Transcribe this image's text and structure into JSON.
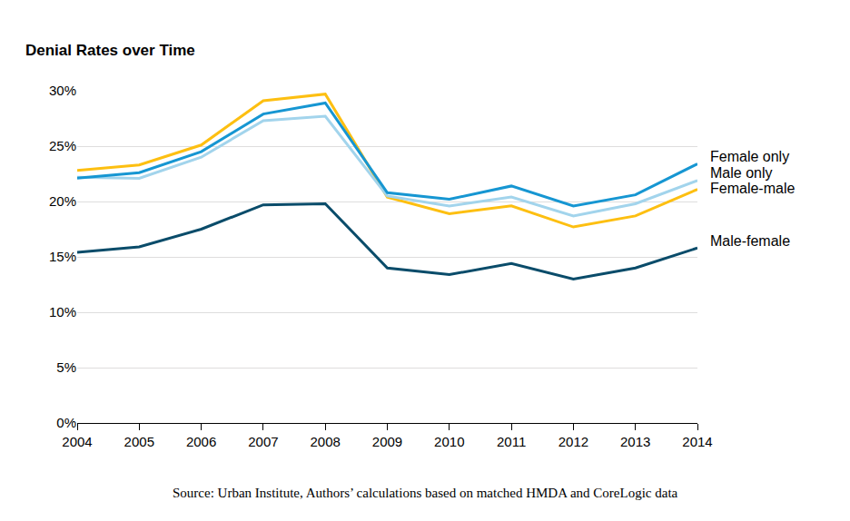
{
  "chart_data": {
    "type": "line",
    "title": "Denial Rates over Time",
    "source": "Source: Urban Institute, Authors’ calculations based on matched HMDA and CoreLogic data",
    "x": [
      2004,
      2005,
      2006,
      2007,
      2008,
      2009,
      2010,
      2011,
      2012,
      2013,
      2014
    ],
    "xlim": [
      2004,
      2014
    ],
    "xticks": [
      2004,
      2005,
      2006,
      2007,
      2008,
      2009,
      2010,
      2011,
      2012,
      2013,
      2014
    ],
    "ylim": [
      0,
      30
    ],
    "yticks": [
      {
        "value": 0,
        "label": "0%"
      },
      {
        "value": 5,
        "label": "5%"
      },
      {
        "value": 10,
        "label": "10%"
      },
      {
        "value": 15,
        "label": "15%"
      },
      {
        "value": 20,
        "label": "20%"
      },
      {
        "value": 25,
        "label": "25%"
      },
      {
        "value": 30,
        "label": "30%"
      }
    ],
    "grid": true,
    "series": [
      {
        "name": "Female-male",
        "color": "#fdbf11",
        "values": [
          22.8,
          23.3,
          25.1,
          29.1,
          29.7,
          20.4,
          18.9,
          19.6,
          17.7,
          18.7,
          21.1
        ]
      },
      {
        "name": "Male only",
        "color": "#a2d4ec",
        "values": [
          22.2,
          22.1,
          24.0,
          27.3,
          27.7,
          20.5,
          19.6,
          20.4,
          18.7,
          19.8,
          21.9
        ]
      },
      {
        "name": "Female only",
        "color": "#1696d2",
        "values": [
          22.1,
          22.6,
          24.5,
          27.9,
          28.9,
          20.8,
          20.2,
          21.4,
          19.6,
          20.6,
          23.4
        ]
      },
      {
        "name": "Male-female",
        "color": "#0a4c6a",
        "values": [
          15.4,
          15.9,
          17.5,
          19.7,
          19.8,
          14.0,
          13.4,
          14.4,
          13.0,
          14.0,
          15.8
        ]
      }
    ]
  }
}
